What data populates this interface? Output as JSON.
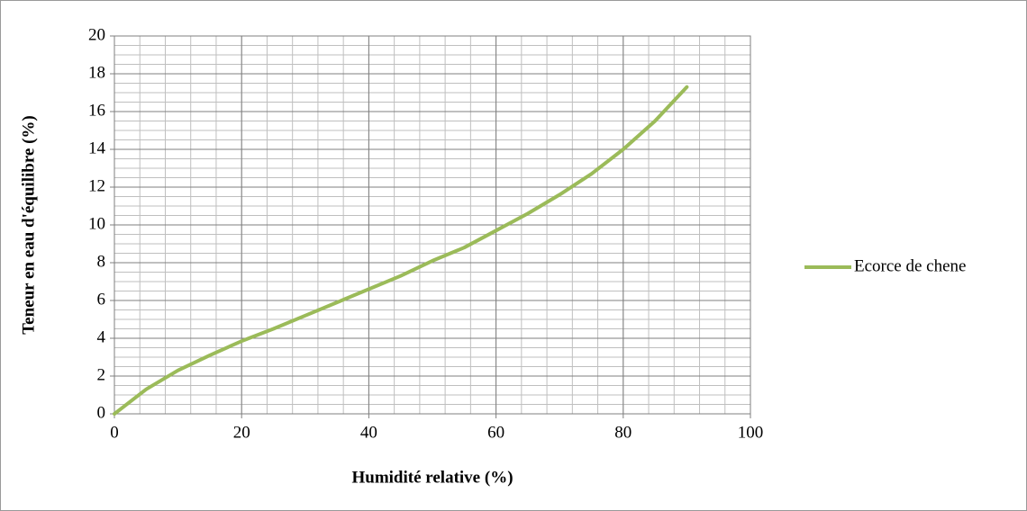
{
  "chart_data": {
    "type": "line",
    "x_label": "Humidité relative (%)",
    "y_label": "Teneur en eau d'équilibre (%)",
    "x": [
      0,
      5,
      10,
      15,
      20,
      25,
      30,
      35,
      40,
      45,
      50,
      55,
      60,
      65,
      70,
      75,
      80,
      85,
      90
    ],
    "series": [
      {
        "name": "Ecorce de chene",
        "color": "#9bbb59",
        "values": [
          0,
          1.3,
          2.3,
          3.1,
          3.85,
          4.5,
          5.2,
          5.9,
          6.6,
          7.3,
          8.1,
          8.8,
          9.7,
          10.6,
          11.6,
          12.7,
          14,
          15.5,
          17.3
        ]
      }
    ],
    "xlim": [
      0,
      100
    ],
    "xticks": [
      0,
      20,
      40,
      60,
      80,
      100
    ],
    "ylim": [
      0,
      20
    ],
    "yticks": [
      0,
      2,
      4,
      6,
      8,
      10,
      12,
      14,
      16,
      18,
      20
    ],
    "grid": true,
    "minor_grid": {
      "x": 4,
      "y": 0.5
    },
    "legend": "right"
  }
}
